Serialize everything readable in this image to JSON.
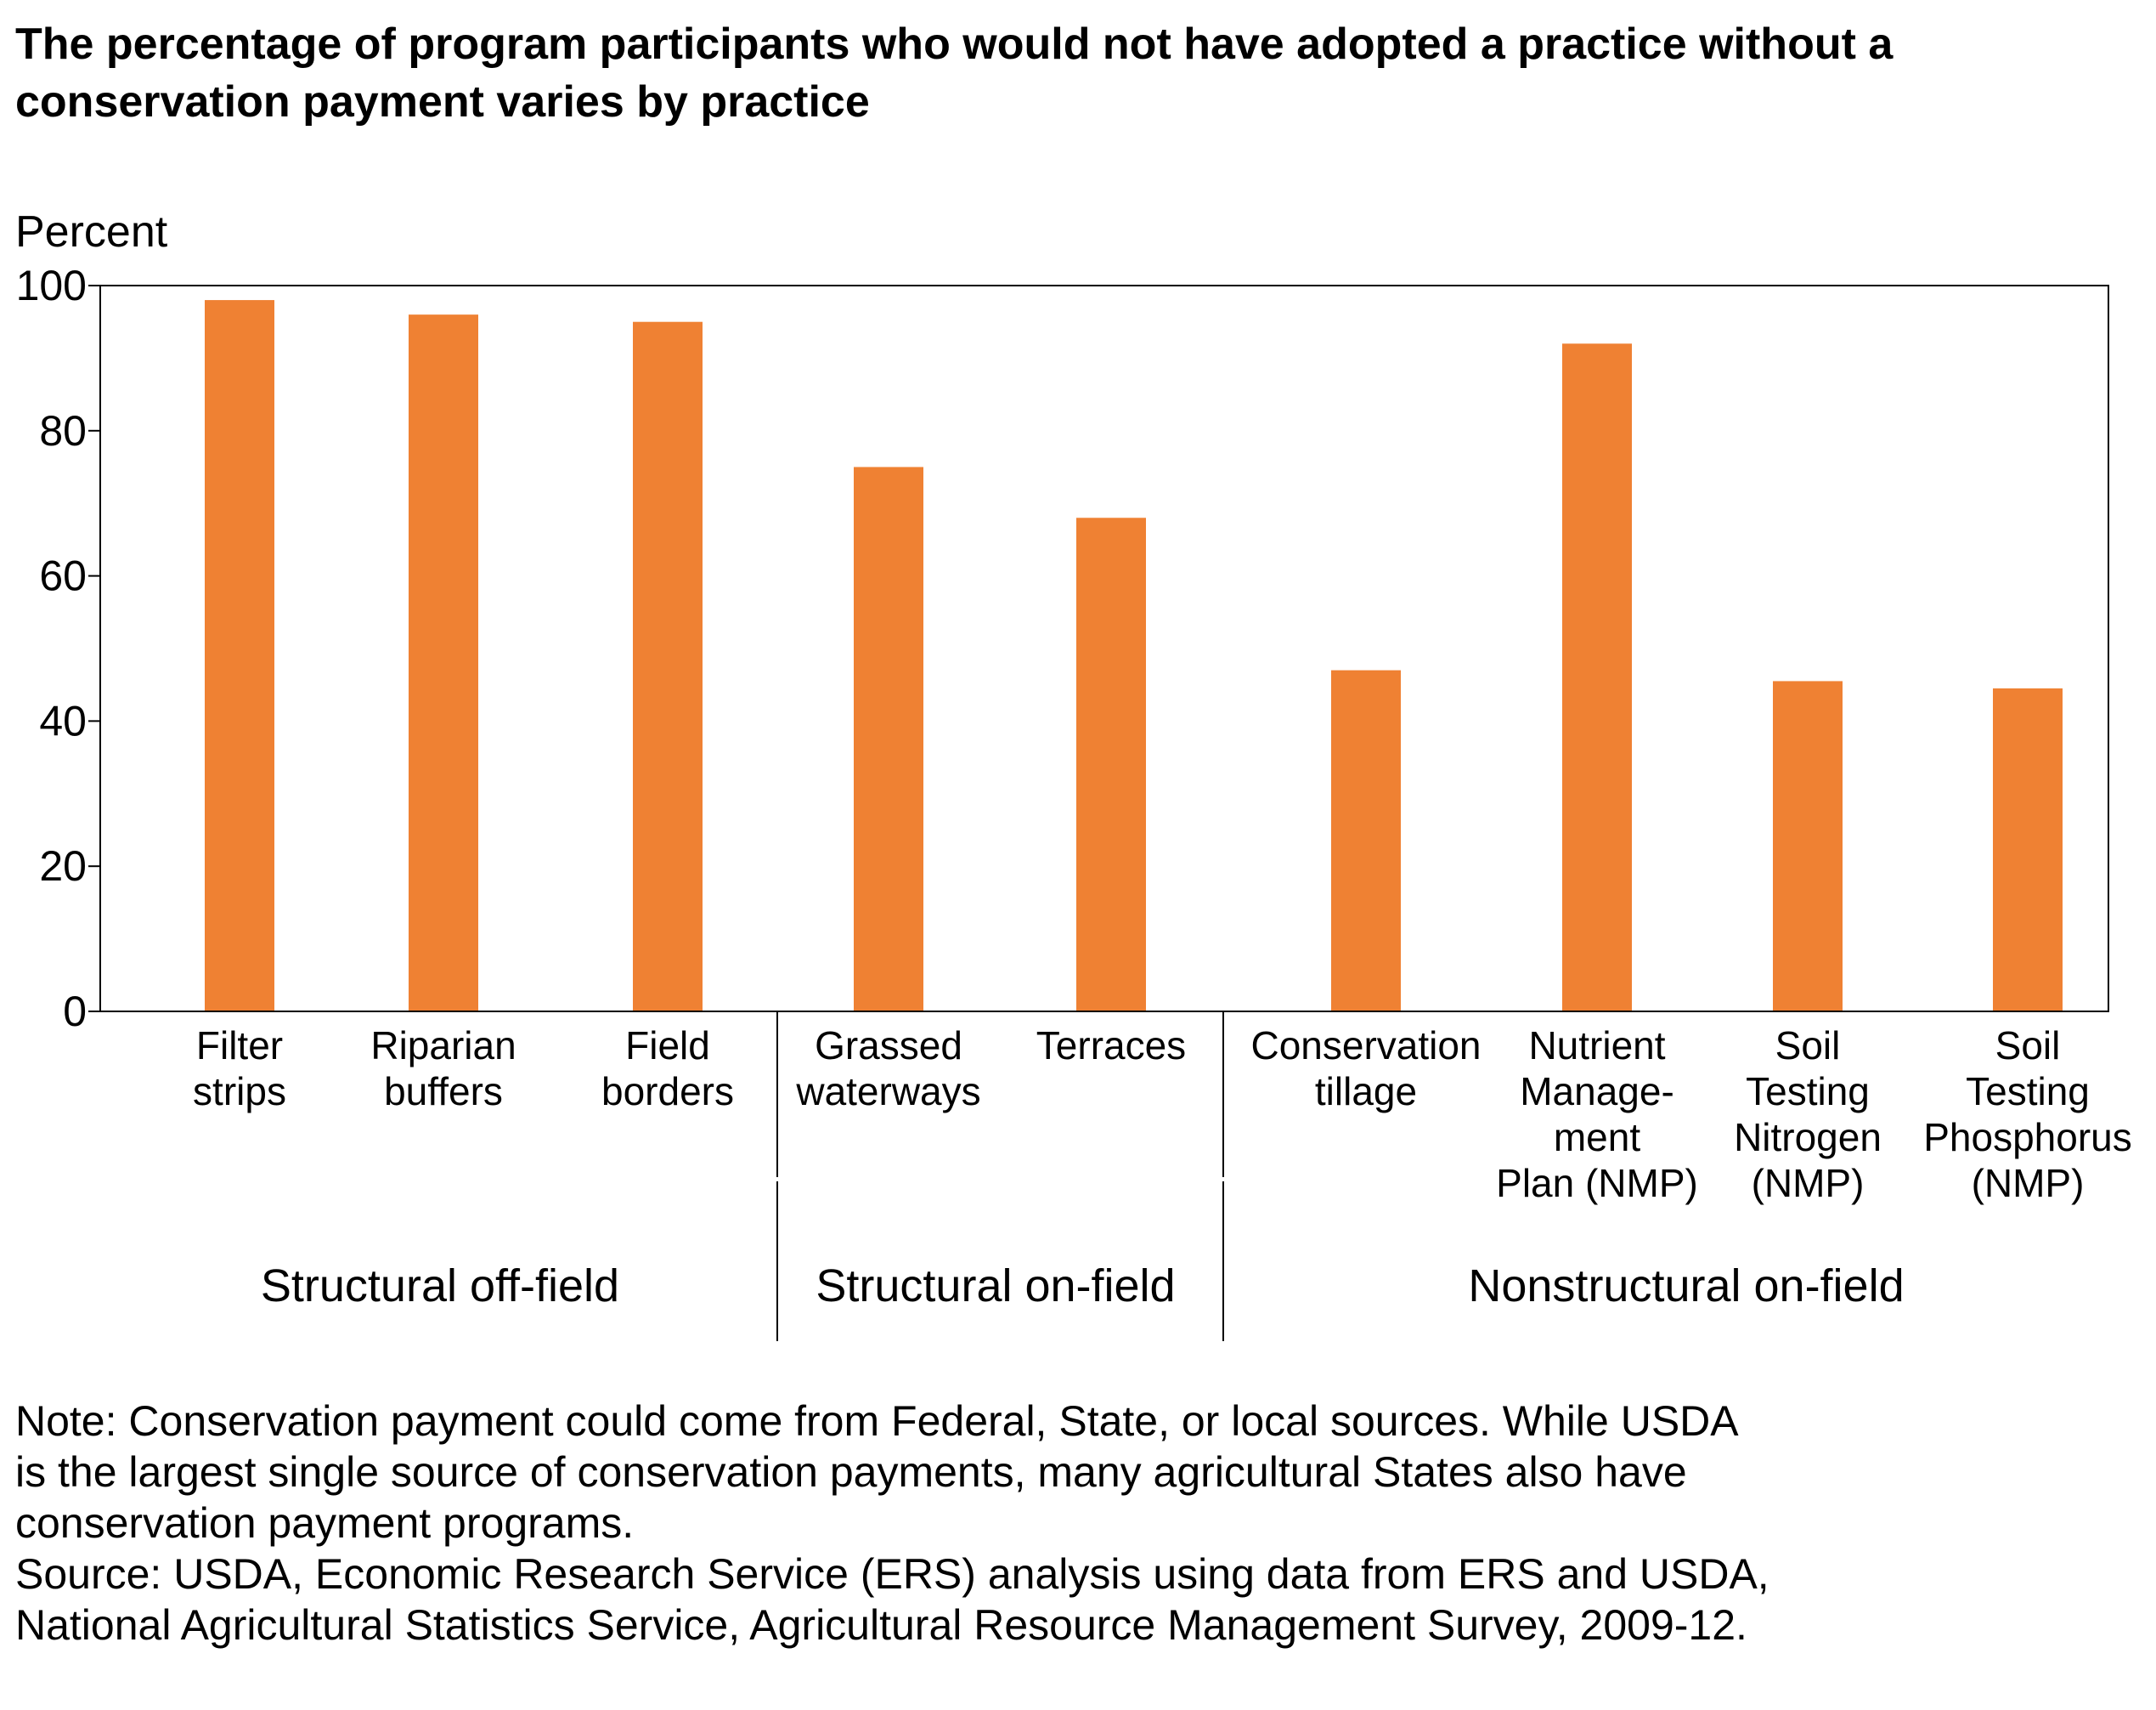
{
  "title_lines": [
    "The percentage of program participants who would not have adopted a practice without a",
    "conservation payment varies by practice"
  ],
  "chart_data": {
    "type": "bar",
    "ylabel": "Percent",
    "ylim": [
      0,
      100
    ],
    "yticks": [
      0,
      20,
      40,
      60,
      80,
      100
    ],
    "bar_color": "#ef8133",
    "categories": [
      [
        "Filter",
        "strips"
      ],
      [
        "Riparian",
        "buffers"
      ],
      [
        "Field",
        "borders"
      ],
      [
        "Grassed",
        "waterways"
      ],
      [
        "Terraces"
      ],
      [
        "Conservation",
        "tillage"
      ],
      [
        "Nutrient",
        "Manage-",
        "ment",
        "Plan (NMP)"
      ],
      [
        "Soil",
        "Testing",
        "Nitrogen",
        "(NMP)"
      ],
      [
        "Soil",
        "Testing",
        "Phosphorus",
        "(NMP)"
      ]
    ],
    "values": [
      98,
      96,
      95,
      75,
      68,
      47,
      92,
      45.5,
      44.5
    ],
    "groups": [
      {
        "label": "Structural off-field",
        "from": 0,
        "to": 2
      },
      {
        "label": "Structural on-field",
        "from": 3,
        "to": 4
      },
      {
        "label": "Nonstructural on-field",
        "from": 5,
        "to": 8
      }
    ]
  },
  "note_lines": [
    "Note: Conservation payment could come from Federal, State, or local sources. While USDA",
    "is the largest single source of conservation payments, many agricultural States also have",
    "conservation payment programs.",
    "Source: USDA, Economic Research Service (ERS) analysis using data from ERS and USDA,",
    "National Agricultural Statistics Service, Agricultural Resource Management Survey, 2009-12."
  ]
}
